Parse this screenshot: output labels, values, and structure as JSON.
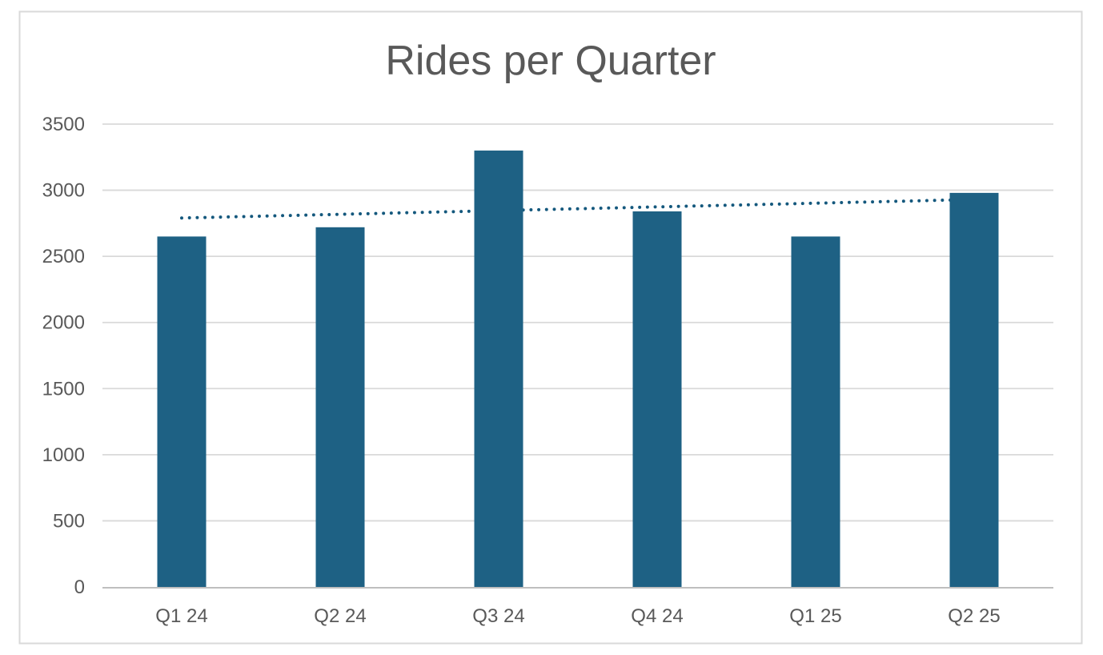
{
  "chart_data": {
    "type": "bar",
    "title": "Rides per Quarter",
    "categories": [
      "Q1 24",
      "Q2 24",
      "Q3 24",
      "Q4 24",
      "Q1 25",
      "Q2 25"
    ],
    "values": [
      2650,
      2720,
      3300,
      2840,
      2650,
      2980
    ],
    "xlabel": "",
    "ylabel": "",
    "ylim": [
      0,
      3500
    ],
    "yticks": [
      0,
      500,
      1000,
      1500,
      2000,
      2500,
      3000,
      3500
    ],
    "grid": true,
    "legend": false,
    "trendline": {
      "type": "linear",
      "style": "dotted",
      "start_value": 2790,
      "end_value": 2930
    },
    "colors": {
      "bar": "#1E6184",
      "trendline": "#14587D",
      "gridline": "#D9D9D9",
      "axis_line": "#BFBFBF",
      "frame_border": "#D9D9D9",
      "text": "#595959",
      "background": "#FFFFFF"
    }
  }
}
